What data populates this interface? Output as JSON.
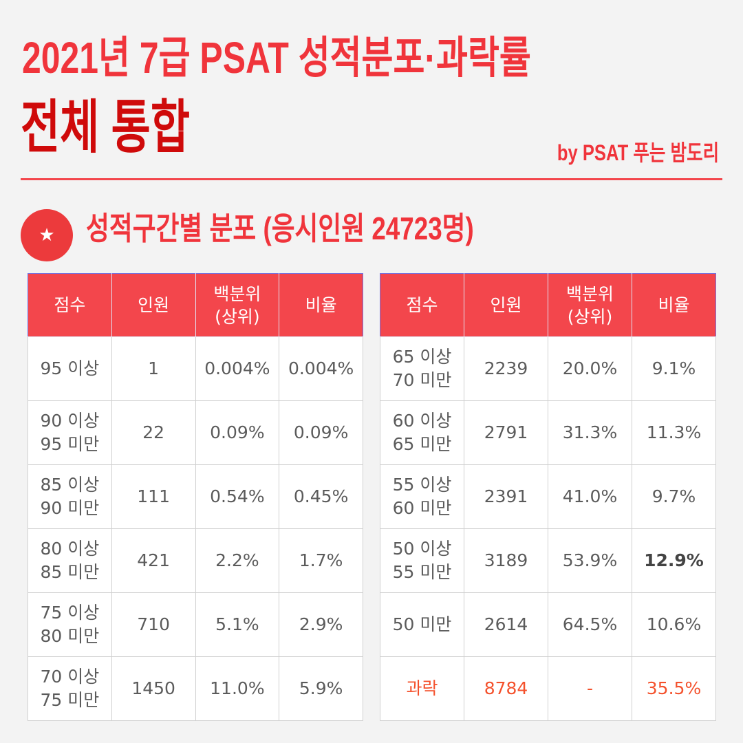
{
  "header": {
    "title": "2021년 7급 PSAT 성적분포·과락률",
    "subtitle": "전체 통합",
    "byline": "by PSAT 푸는 밤도리"
  },
  "section": {
    "icon": "star-icon",
    "icon_glyph": "★",
    "heading": "성적구간별 분포 (응시인원 24723명)"
  },
  "colors": {
    "title_red": "#f0343b",
    "title_dark_red": "#cf0a0a",
    "accent": "#f3464c",
    "fail": "#f4512c",
    "body_text": "#5b5b5b",
    "background": "#f3f3f3"
  },
  "tables": [
    {
      "headers": [
        "점수",
        "인원",
        "백분위\n(상위)",
        "비율"
      ],
      "rows": [
        {
          "score": "95 이상",
          "count": 1,
          "percentile": "0.004%",
          "ratio": "0.004%"
        },
        {
          "score": "90 이상\n95 미만",
          "count": 22,
          "percentile": "0.09%",
          "ratio": "0.09%"
        },
        {
          "score": "85 이상\n90 미만",
          "count": 111,
          "percentile": "0.54%",
          "ratio": "0.45%"
        },
        {
          "score": "80 이상\n85 미만",
          "count": 421,
          "percentile": "2.2%",
          "ratio": "1.7%"
        },
        {
          "score": "75 이상\n80 미만",
          "count": 710,
          "percentile": "5.1%",
          "ratio": "2.9%"
        },
        {
          "score": "70 이상\n75 미만",
          "count": 1450,
          "percentile": "11.0%",
          "ratio": "5.9%"
        }
      ]
    },
    {
      "headers": [
        "점수",
        "인원",
        "백분위\n(상위)",
        "비율"
      ],
      "rows": [
        {
          "score": "65 이상\n70 미만",
          "count": 2239,
          "percentile": "20.0%",
          "ratio": "9.1%"
        },
        {
          "score": "60 이상\n65 미만",
          "count": 2791,
          "percentile": "31.3%",
          "ratio": "11.3%"
        },
        {
          "score": "55 이상\n60 미만",
          "count": 2391,
          "percentile": "41.0%",
          "ratio": "9.7%"
        },
        {
          "score": "50 이상\n55 미만",
          "count": 3189,
          "percentile": "53.9%",
          "ratio": "12.9%"
        },
        {
          "score": "50 미만",
          "count": 2614,
          "percentile": "64.5%",
          "ratio": "10.6%"
        },
        {
          "score": "과락",
          "count": 8784,
          "percentile": "-",
          "ratio": "35.5%"
        }
      ]
    }
  ]
}
